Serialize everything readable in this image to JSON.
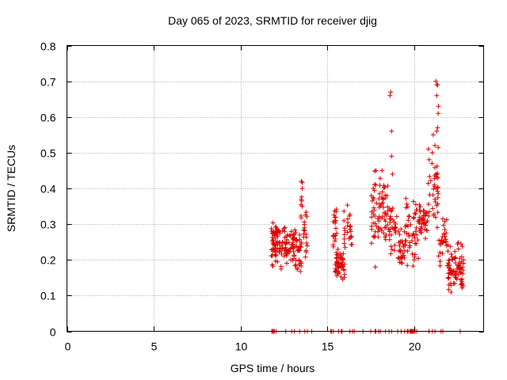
{
  "chart_data": {
    "type": "scatter",
    "title": "Day 065 of 2023, SRMTID for receiver djig",
    "xlabel": "GPS time / hours",
    "ylabel": "SRMTID / TECUs",
    "xlim": [
      0,
      24
    ],
    "ylim": [
      0,
      0.8
    ],
    "xticks": [
      0,
      5,
      10,
      15,
      20
    ],
    "yticks": [
      0,
      0.1,
      0.2,
      0.3,
      0.4,
      0.5,
      0.6,
      0.7,
      0.8
    ],
    "xtick_labels": [
      "0",
      "5",
      "10",
      "15",
      "20"
    ],
    "ytick_labels": [
      "0",
      "0.1",
      "0.2",
      "0.3",
      "0.4",
      "0.5",
      "0.6",
      "0.7",
      "0.8"
    ],
    "grid": true,
    "marker": "+",
    "colors": {
      "points": "#dd0000",
      "grid": "#a0a0a0",
      "axis": "#000000"
    },
    "series": [
      {
        "name": "SRMTID",
        "clusters": [
          {
            "x": [
              11.75,
              12.45
            ],
            "y": [
              0.17,
              0.32
            ],
            "n": 70
          },
          {
            "x": [
              12.45,
              13.05
            ],
            "y": [
              0.18,
              0.3
            ],
            "n": 40
          },
          {
            "x": [
              13.05,
              13.5
            ],
            "y": [
              0.15,
              0.3
            ],
            "n": 40
          },
          {
            "x": [
              13.45,
              13.65
            ],
            "y": [
              0.3,
              0.42
            ],
            "n": 8
          },
          {
            "x": [
              13.55,
              13.85
            ],
            "y": [
              0.2,
              0.36
            ],
            "n": 18
          },
          {
            "x": [
              15.3,
              15.55
            ],
            "y": [
              0.2,
              0.36
            ],
            "n": 22
          },
          {
            "x": [
              15.45,
              16.0
            ],
            "y": [
              0.14,
              0.24
            ],
            "n": 50
          },
          {
            "x": [
              15.95,
              16.5
            ],
            "y": [
              0.22,
              0.36
            ],
            "n": 25
          },
          {
            "x": [
              17.5,
              17.95
            ],
            "y": [
              0.17,
              0.45
            ],
            "n": 30
          },
          {
            "x": [
              17.95,
              18.5
            ],
            "y": [
              0.22,
              0.46
            ],
            "n": 45
          },
          {
            "x": [
              18.5,
              19.0
            ],
            "y": [
              0.2,
              0.38
            ],
            "n": 30
          },
          {
            "x": [
              19.0,
              19.5
            ],
            "y": [
              0.16,
              0.3
            ],
            "n": 30
          },
          {
            "x": [
              19.5,
              20.25
            ],
            "y": [
              0.16,
              0.4
            ],
            "n": 45
          },
          {
            "x": [
              20.25,
              20.8
            ],
            "y": [
              0.24,
              0.38
            ],
            "n": 40
          },
          {
            "x": [
              20.8,
              21.4
            ],
            "y": [
              0.28,
              0.56
            ],
            "n": 40
          },
          {
            "x": [
              21.4,
              21.95
            ],
            "y": [
              0.16,
              0.34
            ],
            "n": 30
          },
          {
            "x": [
              21.95,
              22.4
            ],
            "y": [
              0.1,
              0.24
            ],
            "n": 45
          },
          {
            "x": [
              22.4,
              22.85
            ],
            "y": [
              0.1,
              0.25
            ],
            "n": 40
          }
        ],
        "points": [
          [
            18.6,
            0.66
          ],
          [
            18.65,
            0.67
          ],
          [
            18.7,
            0.56
          ],
          [
            18.7,
            0.49
          ],
          [
            18.75,
            0.44
          ],
          [
            21.25,
            0.7
          ],
          [
            21.3,
            0.69
          ],
          [
            21.35,
            0.69
          ],
          [
            21.3,
            0.66
          ],
          [
            21.4,
            0.63
          ],
          [
            21.38,
            0.61
          ],
          [
            21.3,
            0.56
          ],
          [
            21.35,
            0.57
          ],
          [
            21.1,
            0.55
          ],
          [
            21.2,
            0.52
          ],
          [
            21.05,
            0.5
          ],
          [
            17.8,
            0.45
          ],
          [
            18.15,
            0.45
          ],
          [
            13.5,
            0.42
          ],
          [
            13.55,
            0.4
          ]
        ],
        "zero_points_x": [
          11.8,
          11.85,
          11.9,
          11.95,
          12.05,
          12.6,
          12.95,
          13.1,
          13.4,
          13.7,
          13.85,
          14.1,
          15.2,
          15.25,
          15.35,
          15.65,
          15.8,
          15.85,
          16.3,
          16.45,
          16.55,
          17.05,
          17.5,
          17.75,
          17.8,
          17.95,
          18.05,
          18.35,
          18.55,
          18.7,
          19.05,
          19.25,
          19.45,
          19.6,
          19.65,
          19.75,
          19.8,
          19.85,
          19.9,
          19.95,
          20.0,
          20.05,
          20.15,
          20.85,
          21.05,
          21.2,
          21.55,
          21.65,
          22.65
        ]
      }
    ]
  }
}
